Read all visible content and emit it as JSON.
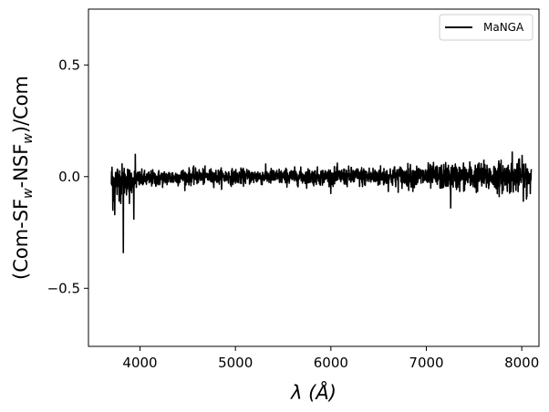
{
  "chart_data": {
    "type": "line",
    "xlabel_symbol": "λ",
    "xlabel_unit": "(Å)",
    "ylabel_parts": [
      "(Com-SF",
      "w",
      "-NSF",
      "w",
      ")/Com"
    ],
    "xlim": [
      3460,
      8180
    ],
    "ylim": [
      -0.76,
      0.75
    ],
    "xticks": [
      4000,
      5000,
      6000,
      7000,
      8000
    ],
    "xtick_labels": [
      "4000",
      "5000",
      "6000",
      "7000",
      "8000"
    ],
    "yticks": [
      -0.5,
      0.0,
      0.5
    ],
    "ytick_labels": [
      "−0.5",
      "0.0",
      "0.5"
    ],
    "legend_position": "top-right",
    "grid": false,
    "series": [
      {
        "name": "MaNGA",
        "color": "#000000",
        "x_range": [
          3700,
          8100
        ],
        "noise_profile": [
          [
            3700,
            0.06
          ],
          [
            3900,
            0.04
          ],
          [
            4000,
            0.025
          ],
          [
            5000,
            0.022
          ],
          [
            6000,
            0.025
          ],
          [
            7000,
            0.035
          ],
          [
            8100,
            0.05
          ]
        ],
        "trend": [
          [
            3700,
            -0.02
          ],
          [
            4500,
            0.0
          ],
          [
            6000,
            0.0
          ],
          [
            8100,
            0.0
          ]
        ],
        "spikes": [
          [
            3715,
            -0.15
          ],
          [
            3735,
            -0.17
          ],
          [
            3760,
            -0.08
          ],
          [
            3800,
            -0.12
          ],
          [
            3825,
            -0.34
          ],
          [
            3860,
            -0.05
          ],
          [
            3890,
            -0.12
          ],
          [
            3935,
            -0.19
          ],
          [
            3950,
            0.1
          ],
          [
            7255,
            -0.14
          ],
          [
            7900,
            0.11
          ],
          [
            8050,
            -0.1
          ]
        ]
      }
    ]
  }
}
